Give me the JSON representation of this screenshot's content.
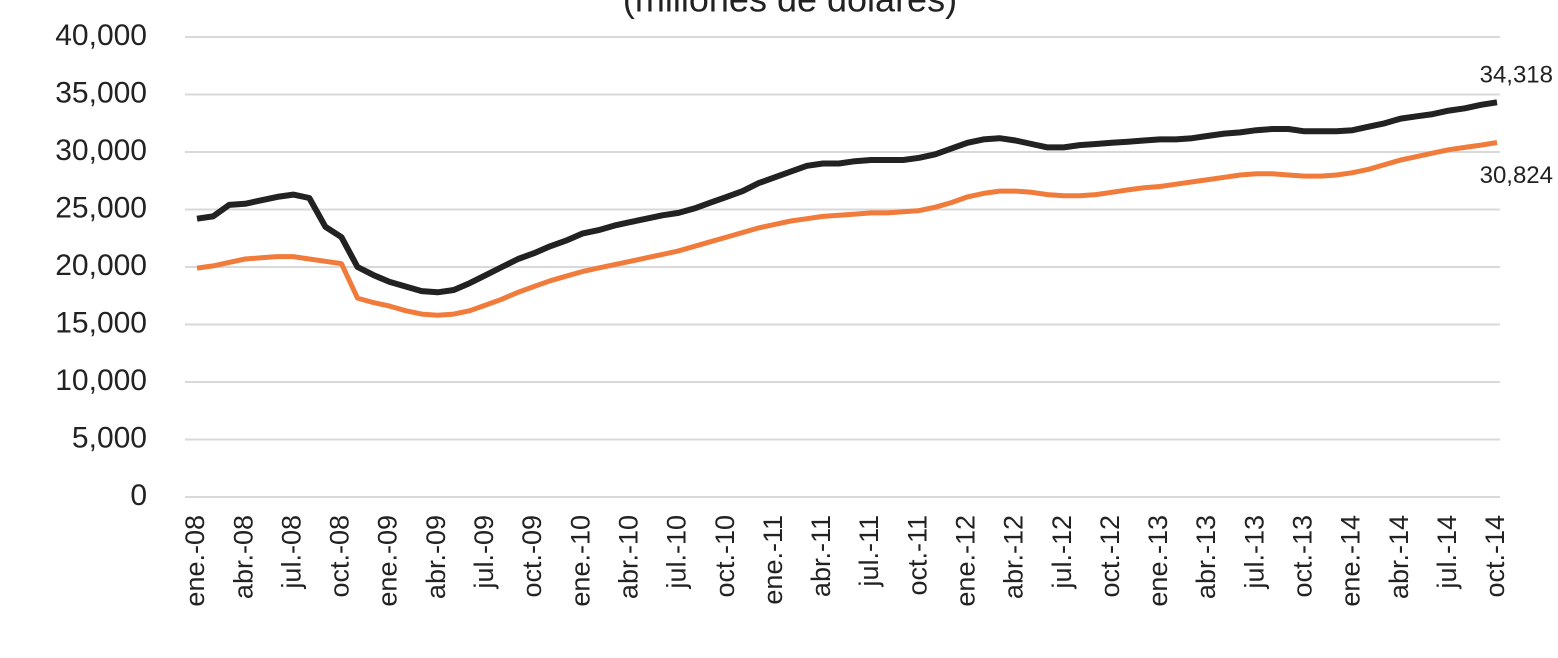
{
  "chart_data": {
    "type": "line",
    "subtitle": "(millones de dólares)",
    "categories": [
      "ene.-08",
      null,
      null,
      "abr.-08",
      null,
      null,
      "jul.-08",
      null,
      null,
      "oct.-08",
      null,
      null,
      "ene.-09",
      null,
      null,
      "abr.-09",
      null,
      null,
      "jul.-09",
      null,
      null,
      "oct.-09",
      null,
      null,
      "ene.-10",
      null,
      null,
      "abr.-10",
      null,
      null,
      "jul.-10",
      null,
      null,
      "oct.-10",
      null,
      null,
      "ene.-11",
      null,
      null,
      "abr.-11",
      null,
      null,
      "jul.-11",
      null,
      null,
      "oct.-11",
      null,
      null,
      "ene.-12",
      null,
      null,
      "abr.-12",
      null,
      null,
      "jul.-12",
      null,
      null,
      "oct.-12",
      null,
      null,
      "ene.-13",
      null,
      null,
      "abr.-13",
      null,
      null,
      "jul.-13",
      null,
      null,
      "oct.-13",
      null,
      null,
      "ene.-14",
      null,
      null,
      "abr.-14",
      null,
      null,
      "jul.-14",
      null,
      null,
      "oct.-14"
    ],
    "series": [
      {
        "color": "#222222",
        "values": [
          24200,
          24400,
          25400,
          25500,
          25800,
          26100,
          26300,
          26000,
          23500,
          22600,
          20000,
          19300,
          18700,
          18300,
          17900,
          17800,
          18000,
          18600,
          19300,
          20000,
          20700,
          21200,
          21800,
          22300,
          22900,
          23200,
          23600,
          23900,
          24200,
          24500,
          24700,
          25100,
          25600,
          26100,
          26600,
          27300,
          27800,
          28300,
          28800,
          29000,
          29000,
          29200,
          29300,
          29300,
          29300,
          29500,
          29800,
          30300,
          30800,
          31100,
          31200,
          31000,
          30700,
          30400,
          30400,
          30600,
          30700,
          30800,
          30900,
          31000,
          31100,
          31100,
          31200,
          31400,
          31600,
          31700,
          31900,
          32000,
          32000,
          31800,
          31800,
          31800,
          31900,
          32200,
          32500,
          32900,
          33100,
          33300,
          33600,
          33800,
          34100,
          34318
        ],
        "value_labels": [
          null,
          null,
          null,
          null,
          null,
          null,
          null,
          null,
          null,
          null,
          null,
          null,
          null,
          null,
          null,
          null,
          null,
          null,
          null,
          null,
          null,
          null,
          null,
          null,
          null,
          null,
          null,
          null,
          null,
          null,
          null,
          null,
          null,
          null,
          null,
          null,
          null,
          null,
          null,
          null,
          null,
          null,
          null,
          null,
          null,
          null,
          null,
          null,
          null,
          null,
          null,
          null,
          null,
          null,
          null,
          null,
          null,
          null,
          null,
          null,
          null,
          null,
          null,
          null,
          null,
          null,
          null,
          null,
          null,
          null,
          null,
          null,
          null,
          null,
          null,
          null,
          null,
          null,
          null,
          null,
          null,
          "34,318"
        ]
      },
      {
        "color": "#f07b3a",
        "values": [
          19900,
          20100,
          20400,
          20700,
          20800,
          20900,
          20900,
          20700,
          20500,
          20300,
          17300,
          16900,
          16600,
          16200,
          15900,
          15800,
          15900,
          16200,
          16700,
          17200,
          17800,
          18300,
          18800,
          19200,
          19600,
          19900,
          20200,
          20500,
          20800,
          21100,
          21400,
          21800,
          22200,
          22600,
          23000,
          23400,
          23700,
          24000,
          24200,
          24400,
          24500,
          24600,
          24700,
          24700,
          24800,
          24900,
          25200,
          25600,
          26100,
          26400,
          26600,
          26600,
          26500,
          26300,
          26200,
          26200,
          26300,
          26500,
          26700,
          26900,
          27000,
          27200,
          27400,
          27600,
          27800,
          28000,
          28100,
          28100,
          28000,
          27900,
          27900,
          28000,
          28200,
          28500,
          28900,
          29300,
          29600,
          29900,
          30200,
          30400,
          30600,
          30824
        ],
        "value_labels": [
          null,
          null,
          null,
          null,
          null,
          null,
          null,
          null,
          null,
          null,
          null,
          null,
          null,
          null,
          null,
          null,
          null,
          null,
          null,
          null,
          null,
          null,
          null,
          null,
          null,
          null,
          null,
          null,
          null,
          null,
          null,
          null,
          null,
          null,
          null,
          null,
          null,
          null,
          null,
          null,
          null,
          null,
          null,
          null,
          null,
          null,
          null,
          null,
          null,
          null,
          null,
          null,
          null,
          null,
          null,
          null,
          null,
          null,
          null,
          null,
          null,
          null,
          null,
          null,
          null,
          null,
          null,
          null,
          null,
          null,
          null,
          null,
          null,
          null,
          null,
          null,
          null,
          null,
          null,
          null,
          null,
          "30,824"
        ]
      }
    ],
    "ylim": [
      0,
      40000
    ],
    "yticks": [
      0,
      {
        "value": 5000,
        "label": "5,000"
      },
      {
        "value": 10000,
        "label": "10,000"
      },
      {
        "value": 15000,
        "label": "15,000"
      },
      {
        "value": 20000,
        "label": "20,000"
      },
      {
        "value": 25000,
        "label": "25,000"
      },
      {
        "value": 30000,
        "label": "30,000"
      },
      {
        "value": 35000,
        "label": "35,000"
      },
      {
        "value": 40000,
        "label": "40,000"
      }
    ],
    "grid": true
  }
}
